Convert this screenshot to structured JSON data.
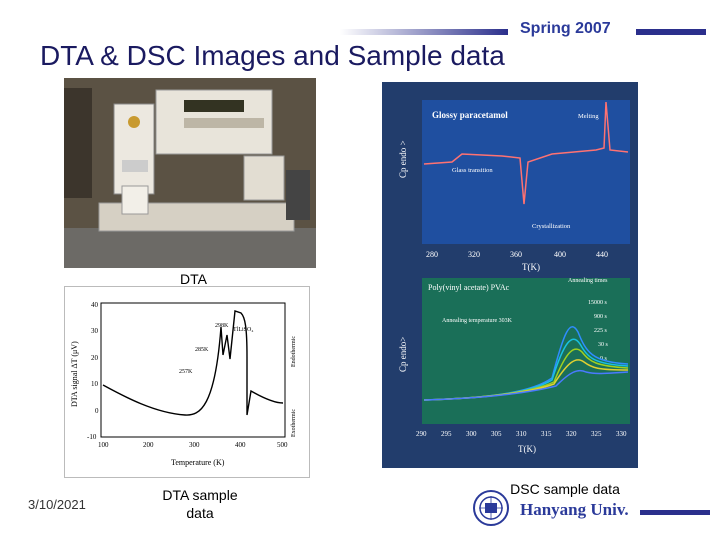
{
  "slide": {
    "title": "DTA & DSC Images and Sample data",
    "term": "Spring 2007",
    "date": "3/10/2021",
    "dta_photo_caption": "DTA",
    "dta_sample_caption": "DTA sample data",
    "dsc_sample_caption": "DSC sample data",
    "university": "Hanyang Univ.",
    "brand_color": "#2b2f8c"
  },
  "dta_plot": {
    "ylabel": "DTA signal  ΔT (μV)",
    "xlabel": "Temperature (K)",
    "xticks": [
      "100",
      "200",
      "300",
      "400",
      "500"
    ],
    "yticks": [
      "40",
      "30",
      "20",
      "10",
      "0",
      "-10"
    ],
    "annotations": [
      "298K",
      "TlLiSO₄",
      "285K",
      "257K",
      "Endothermic",
      "Exothermic"
    ]
  },
  "dsc_top": {
    "title": "Glossy paracetamol",
    "ylabel": "Cp  endo >",
    "xlabel": "T(K)",
    "xticks": [
      "280",
      "320",
      "360",
      "400",
      "440"
    ],
    "annotations": [
      "Melting",
      "Glass transition",
      "Crystallization"
    ]
  },
  "dsc_bottom": {
    "title": "Poly(vinyl acetate) PVAc",
    "ylabel": "Cp   endo>",
    "xlabel": "T(K)",
    "xticks": [
      "290",
      "295",
      "300",
      "305",
      "310",
      "315",
      "320",
      "325",
      "330"
    ],
    "annotations": [
      "Annealing times",
      "Annealing temperature 303K"
    ],
    "legend": [
      "15000 s",
      "900 s",
      "225 s",
      "30 s",
      "0 s"
    ]
  }
}
